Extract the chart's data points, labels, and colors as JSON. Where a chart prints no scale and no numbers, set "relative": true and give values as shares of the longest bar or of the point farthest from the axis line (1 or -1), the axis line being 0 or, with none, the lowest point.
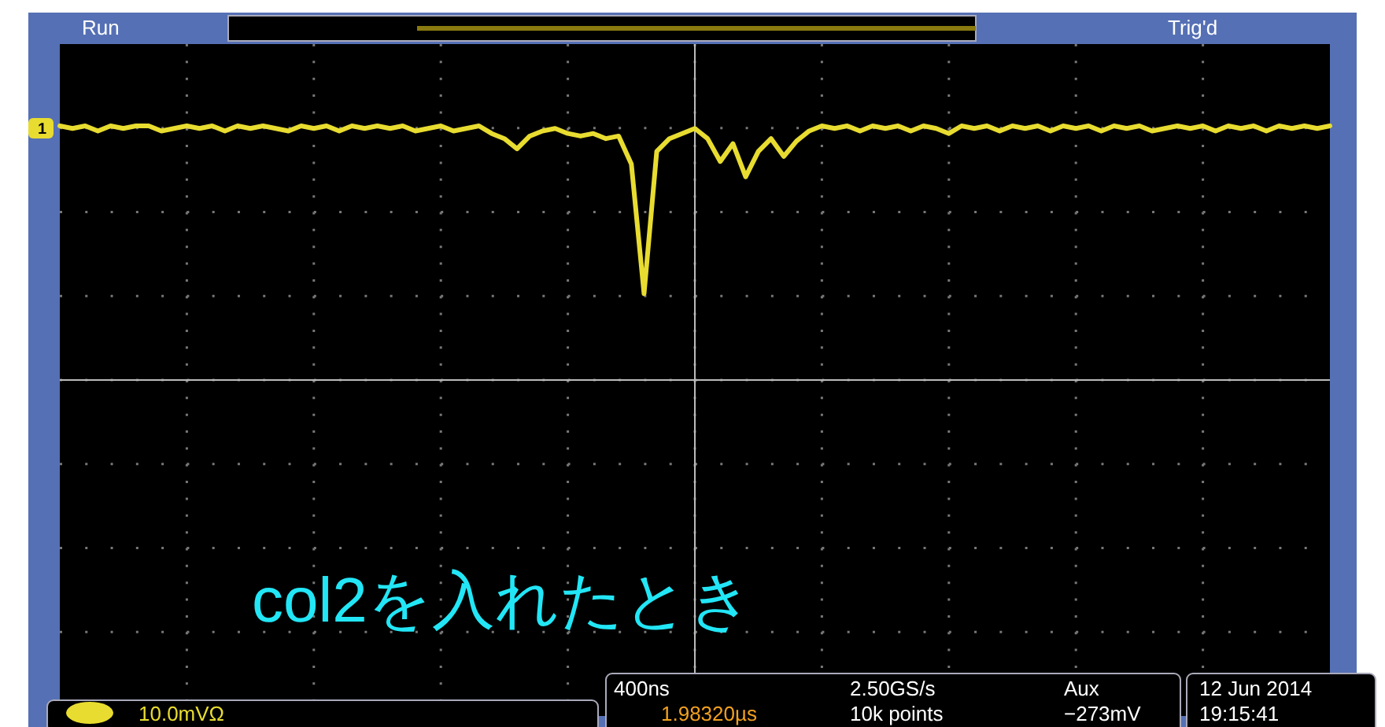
{
  "chart_data": {
    "type": "line",
    "relative": true,
    "grid": true,
    "categories": [
      null,
      null,
      null,
      null,
      null,
      null,
      null,
      null,
      null,
      null,
      null,
      null,
      null,
      null,
      null,
      null,
      null,
      null,
      null,
      null,
      null,
      null,
      null,
      null,
      null,
      null,
      null,
      null,
      null,
      null,
      null,
      null,
      null,
      null,
      null,
      null,
      null,
      null,
      null,
      null,
      null,
      null,
      null,
      null,
      null,
      null,
      null,
      null,
      null,
      null,
      null,
      null,
      null,
      null,
      null,
      null,
      null,
      null,
      null,
      null,
      null,
      null,
      null,
      null,
      null,
      null,
      null,
      null,
      null,
      null,
      null,
      null,
      null,
      null,
      null,
      null,
      null,
      null,
      null,
      null,
      null,
      null,
      null,
      null,
      null,
      null,
      null,
      null,
      null,
      null,
      null,
      null,
      null,
      null,
      null,
      null,
      null,
      null,
      null,
      null,
      null
    ],
    "series": [
      {
        "color": "#e8dc30",
        "values": [
          1,
          0.99,
          1,
          0.98,
          1,
          0.99,
          1,
          1,
          0.98,
          0.99,
          1,
          0.99,
          1,
          0.98,
          1,
          0.99,
          1,
          0.99,
          0.98,
          1,
          0.99,
          1,
          0.98,
          1,
          0.99,
          1,
          0.99,
          1,
          0.98,
          0.99,
          1,
          0.98,
          0.99,
          1,
          0.97,
          0.95,
          0.91,
          0.96,
          0.98,
          0.99,
          0.97,
          0.96,
          0.97,
          0.95,
          0.96,
          0.85,
          0.34,
          0.9,
          0.95,
          0.97,
          0.99,
          0.95,
          0.86,
          0.93,
          0.8,
          0.9,
          0.95,
          0.88,
          0.94,
          0.98,
          1,
          0.99,
          1,
          0.98,
          1,
          0.99,
          1,
          0.98,
          1,
          0.99,
          0.97,
          1,
          0.99,
          1,
          0.98,
          1,
          0.99,
          1,
          0.98,
          1,
          0.99,
          1,
          0.98,
          1,
          0.99,
          1,
          0.98,
          0.99,
          1,
          0.99,
          1,
          0.98,
          1,
          0.99,
          1,
          0.98,
          1,
          0.99,
          1,
          0.99,
          1
        ]
      }
    ],
    "annotations": [
      "Run",
      "Trig'd",
      "1",
      "10.0mVΩ",
      "400ns",
      "2.50GS/s",
      "Aux",
      "1.98320µs",
      "10k points",
      "−273mV",
      "12 Jun 2014",
      "19:15:41",
      "col2を入れたとき"
    ]
  }
}
